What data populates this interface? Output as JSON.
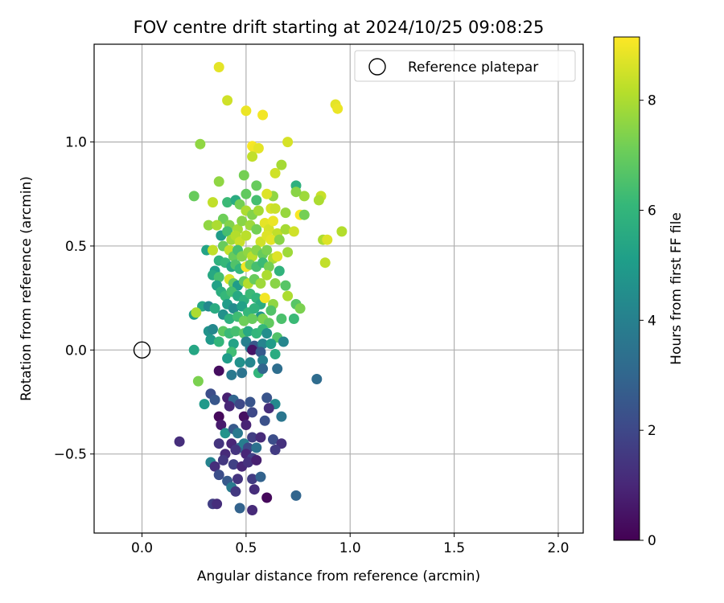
{
  "chart_data": {
    "type": "scatter",
    "title": "FOV centre drift starting at 2024/10/25 09:08:25",
    "xlabel": "Angular distance from reference (arcmin)",
    "ylabel": "Rotation from reference (arcmin)",
    "xlim": [
      -0.23,
      2.12
    ],
    "ylim": [
      -0.88,
      1.47
    ],
    "xticks": [
      0.0,
      0.5,
      1.0,
      1.5,
      2.0
    ],
    "xtick_labels": [
      "0.0",
      "0.5",
      "1.0",
      "1.5",
      "2.0"
    ],
    "yticks": [
      -0.5,
      0.0,
      0.5,
      1.0
    ],
    "ytick_labels": [
      "−0.5",
      "0.0",
      "0.5",
      "1.0"
    ],
    "grid": true,
    "legend": {
      "placement": "top-right",
      "entries": [
        "Reference platepar"
      ]
    },
    "reference_point": {
      "x": 0.0,
      "y": 0.0
    },
    "colorbar": {
      "label": "Hours from first FF file",
      "range": [
        0,
        9.15
      ],
      "ticks": [
        0,
        2,
        4,
        6,
        8
      ],
      "tick_labels": [
        "0",
        "2",
        "4",
        "6",
        "8"
      ],
      "colormap": "viridis",
      "colors": [
        "#440154",
        "#482878",
        "#3e4989",
        "#31688e",
        "#26828e",
        "#1f9e89",
        "#35b779",
        "#6ece58",
        "#b5de2b",
        "#fde725"
      ]
    },
    "series": [
      {
        "name": "FOV centre drift",
        "points": [
          [
            0.37,
            1.36,
            8.8
          ],
          [
            0.41,
            1.2,
            8.5
          ],
          [
            0.5,
            1.15,
            8.9
          ],
          [
            0.58,
            1.13,
            9.0
          ],
          [
            0.93,
            1.18,
            8.8
          ],
          [
            0.94,
            1.16,
            8.9
          ],
          [
            0.28,
            0.99,
            7.6
          ],
          [
            0.53,
            0.98,
            9.1
          ],
          [
            0.54,
            0.97,
            9.0
          ],
          [
            0.56,
            0.97,
            8.8
          ],
          [
            0.7,
            1.0,
            8.6
          ],
          [
            0.53,
            0.93,
            8.3
          ],
          [
            0.67,
            0.89,
            7.9
          ],
          [
            0.37,
            0.81,
            7.6
          ],
          [
            0.49,
            0.84,
            7.2
          ],
          [
            0.64,
            0.85,
            8.5
          ],
          [
            0.74,
            0.79,
            5.8
          ],
          [
            0.55,
            0.79,
            7.0
          ],
          [
            0.25,
            0.74,
            7.0
          ],
          [
            0.34,
            0.71,
            8.3
          ],
          [
            0.41,
            0.71,
            6.2
          ],
          [
            0.45,
            0.72,
            5.6
          ],
          [
            0.5,
            0.75,
            6.9
          ],
          [
            0.55,
            0.72,
            6.4
          ],
          [
            0.63,
            0.74,
            7.6
          ],
          [
            0.6,
            0.75,
            8.7
          ],
          [
            0.78,
            0.74,
            7.8
          ],
          [
            0.86,
            0.74,
            8.4
          ],
          [
            0.85,
            0.72,
            8.0
          ],
          [
            0.74,
            0.76,
            7.5
          ],
          [
            0.47,
            0.7,
            7.2
          ],
          [
            0.5,
            0.67,
            8.0
          ],
          [
            0.53,
            0.65,
            7.4
          ],
          [
            0.56,
            0.67,
            7.9
          ],
          [
            0.62,
            0.68,
            8.6
          ],
          [
            0.64,
            0.68,
            8.4
          ],
          [
            0.69,
            0.66,
            7.7
          ],
          [
            0.76,
            0.65,
            9.1
          ],
          [
            0.78,
            0.65,
            7.2
          ],
          [
            0.39,
            0.63,
            7.1
          ],
          [
            0.42,
            0.6,
            7.4
          ],
          [
            0.46,
            0.58,
            7.9
          ],
          [
            0.48,
            0.62,
            7.5
          ],
          [
            0.52,
            0.6,
            7.8
          ],
          [
            0.55,
            0.58,
            7.2
          ],
          [
            0.59,
            0.61,
            8.8
          ],
          [
            0.61,
            0.58,
            8.6
          ],
          [
            0.63,
            0.62,
            8.9
          ],
          [
            0.65,
            0.56,
            8.3
          ],
          [
            0.69,
            0.58,
            7.9
          ],
          [
            0.73,
            0.57,
            8.5
          ],
          [
            0.32,
            0.6,
            7.6
          ],
          [
            0.36,
            0.6,
            8.0
          ],
          [
            0.38,
            0.55,
            5.0
          ],
          [
            0.41,
            0.57,
            6.4
          ],
          [
            0.43,
            0.53,
            7.8
          ],
          [
            0.45,
            0.55,
            8.1
          ],
          [
            0.47,
            0.52,
            8.4
          ],
          [
            0.5,
            0.55,
            8.2
          ],
          [
            0.57,
            0.52,
            8.5
          ],
          [
            0.6,
            0.55,
            8.7
          ],
          [
            0.62,
            0.53,
            8.8
          ],
          [
            0.66,
            0.53,
            7.5
          ],
          [
            0.87,
            0.53,
            8.0
          ],
          [
            0.89,
            0.53,
            8.7
          ],
          [
            0.96,
            0.57,
            8.1
          ],
          [
            0.31,
            0.48,
            5.3
          ],
          [
            0.34,
            0.48,
            8.3
          ],
          [
            0.39,
            0.5,
            7.0
          ],
          [
            0.42,
            0.48,
            8.3
          ],
          [
            0.44,
            0.45,
            7.0
          ],
          [
            0.46,
            0.48,
            6.4
          ],
          [
            0.48,
            0.45,
            7.4
          ],
          [
            0.51,
            0.47,
            7.6
          ],
          [
            0.53,
            0.45,
            8.2
          ],
          [
            0.55,
            0.48,
            7.5
          ],
          [
            0.58,
            0.46,
            7.0
          ],
          [
            0.6,
            0.48,
            7.3
          ],
          [
            0.63,
            0.44,
            8.0
          ],
          [
            0.65,
            0.45,
            8.7
          ],
          [
            0.7,
            0.47,
            7.8
          ],
          [
            0.88,
            0.42,
            8.3
          ],
          [
            0.37,
            0.43,
            5.8
          ],
          [
            0.4,
            0.42,
            6.1
          ],
          [
            0.43,
            0.4,
            5.4
          ],
          [
            0.45,
            0.41,
            6.6
          ],
          [
            0.47,
            0.39,
            6.0
          ],
          [
            0.5,
            0.4,
            9.0
          ],
          [
            0.52,
            0.41,
            7.1
          ],
          [
            0.55,
            0.4,
            6.4
          ],
          [
            0.58,
            0.42,
            6.2
          ],
          [
            0.61,
            0.4,
            7.2
          ],
          [
            0.66,
            0.38,
            5.9
          ],
          [
            0.35,
            0.38,
            5.1
          ],
          [
            0.34,
            0.36,
            5.5
          ],
          [
            0.37,
            0.35,
            6.4
          ],
          [
            0.42,
            0.34,
            8.6
          ],
          [
            0.44,
            0.32,
            6.9
          ],
          [
            0.46,
            0.31,
            5.0
          ],
          [
            0.49,
            0.33,
            6.8
          ],
          [
            0.51,
            0.32,
            8.1
          ],
          [
            0.54,
            0.34,
            7.0
          ],
          [
            0.57,
            0.32,
            7.8
          ],
          [
            0.6,
            0.36,
            8.0
          ],
          [
            0.64,
            0.32,
            7.5
          ],
          [
            0.69,
            0.31,
            6.7
          ],
          [
            0.36,
            0.31,
            5.2
          ],
          [
            0.38,
            0.28,
            5.7
          ],
          [
            0.4,
            0.26,
            6.1
          ],
          [
            0.43,
            0.28,
            6.4
          ],
          [
            0.46,
            0.26,
            5.5
          ],
          [
            0.49,
            0.24,
            5.8
          ],
          [
            0.52,
            0.27,
            6.2
          ],
          [
            0.55,
            0.25,
            6.0
          ],
          [
            0.57,
            0.22,
            5.6
          ],
          [
            0.59,
            0.25,
            9.0
          ],
          [
            0.63,
            0.22,
            7.6
          ],
          [
            0.7,
            0.26,
            8.0
          ],
          [
            0.74,
            0.22,
            6.7
          ],
          [
            0.76,
            0.2,
            7.3
          ],
          [
            0.29,
            0.21,
            5.4
          ],
          [
            0.32,
            0.21,
            4.3
          ],
          [
            0.35,
            0.2,
            5.6
          ],
          [
            0.41,
            0.22,
            5.0
          ],
          [
            0.44,
            0.2,
            4.4
          ],
          [
            0.48,
            0.21,
            5.2
          ],
          [
            0.51,
            0.18,
            6.1
          ],
          [
            0.54,
            0.2,
            5.9
          ],
          [
            0.57,
            0.16,
            4.8
          ],
          [
            0.62,
            0.19,
            6.6
          ],
          [
            0.25,
            0.17,
            5.1
          ],
          [
            0.26,
            0.18,
            8.0
          ],
          [
            0.39,
            0.17,
            4.6
          ],
          [
            0.42,
            0.15,
            5.8
          ],
          [
            0.46,
            0.16,
            6.3
          ],
          [
            0.49,
            0.14,
            7.1
          ],
          [
            0.53,
            0.15,
            7.0
          ],
          [
            0.58,
            0.15,
            7.3
          ],
          [
            0.61,
            0.13,
            6.9
          ],
          [
            0.67,
            0.15,
            6.5
          ],
          [
            0.73,
            0.15,
            6.2
          ],
          [
            0.32,
            0.09,
            4.7
          ],
          [
            0.34,
            0.1,
            4.3
          ],
          [
            0.39,
            0.09,
            6.8
          ],
          [
            0.42,
            0.08,
            6.2
          ],
          [
            0.45,
            0.09,
            6.4
          ],
          [
            0.49,
            0.08,
            6.7
          ],
          [
            0.51,
            0.09,
            5.5
          ],
          [
            0.55,
            0.08,
            6.0
          ],
          [
            0.58,
            0.1,
            6.1
          ],
          [
            0.6,
            0.08,
            4.5
          ],
          [
            0.65,
            0.06,
            6.6
          ],
          [
            0.33,
            0.05,
            4.9
          ],
          [
            0.37,
            0.04,
            6.0
          ],
          [
            0.44,
            0.03,
            5.3
          ],
          [
            0.5,
            0.04,
            4.0
          ],
          [
            0.52,
            0.01,
            3.8
          ],
          [
            0.54,
            0.02,
            2.5
          ],
          [
            0.58,
            0.03,
            4.1
          ],
          [
            0.62,
            0.03,
            5.0
          ],
          [
            0.68,
            0.04,
            4.2
          ],
          [
            0.25,
            0.0,
            5.4
          ],
          [
            0.43,
            -0.01,
            6.3
          ],
          [
            0.53,
            0.0,
            0.5
          ],
          [
            0.57,
            -0.01,
            2.6
          ],
          [
            0.64,
            -0.02,
            5.6
          ],
          [
            0.41,
            -0.04,
            5.0
          ],
          [
            0.47,
            -0.06,
            4.6
          ],
          [
            0.52,
            -0.06,
            4.2
          ],
          [
            0.58,
            -0.05,
            4.0
          ],
          [
            0.37,
            -0.1,
            0.3
          ],
          [
            0.43,
            -0.12,
            3.7
          ],
          [
            0.48,
            -0.11,
            3.5
          ],
          [
            0.56,
            -0.11,
            6.0
          ],
          [
            0.58,
            -0.09,
            3.0
          ],
          [
            0.65,
            -0.09,
            3.3
          ],
          [
            0.84,
            -0.14,
            3.2
          ],
          [
            0.27,
            -0.15,
            7.3
          ],
          [
            0.33,
            -0.21,
            2.2
          ],
          [
            0.35,
            -0.24,
            2.5
          ],
          [
            0.41,
            -0.23,
            0.8
          ],
          [
            0.44,
            -0.24,
            3.0
          ],
          [
            0.47,
            -0.26,
            2.0
          ],
          [
            0.52,
            -0.25,
            2.4
          ],
          [
            0.6,
            -0.23,
            2.4
          ],
          [
            0.64,
            -0.26,
            4.3
          ],
          [
            0.61,
            -0.28,
            1.2
          ],
          [
            0.3,
            -0.26,
            4.9
          ],
          [
            0.42,
            -0.27,
            1.0
          ],
          [
            0.37,
            -0.32,
            0.2
          ],
          [
            0.49,
            -0.32,
            0.4
          ],
          [
            0.53,
            -0.3,
            2.0
          ],
          [
            0.59,
            -0.34,
            2.3
          ],
          [
            0.67,
            -0.32,
            3.6
          ],
          [
            0.38,
            -0.36,
            0.7
          ],
          [
            0.4,
            -0.4,
            4.7
          ],
          [
            0.44,
            -0.38,
            2.6
          ],
          [
            0.46,
            -0.4,
            3.7
          ],
          [
            0.5,
            -0.36,
            0.9
          ],
          [
            0.53,
            -0.42,
            1.7
          ],
          [
            0.57,
            -0.42,
            1.1
          ],
          [
            0.63,
            -0.43,
            2.2
          ],
          [
            0.67,
            -0.45,
            1.3
          ],
          [
            0.18,
            -0.44,
            1.2
          ],
          [
            0.37,
            -0.45,
            1.4
          ],
          [
            0.43,
            -0.45,
            1.0
          ],
          [
            0.47,
            -0.47,
            3.0
          ],
          [
            0.49,
            -0.45,
            3.9
          ],
          [
            0.51,
            -0.47,
            2.0
          ],
          [
            0.55,
            -0.47,
            3.4
          ],
          [
            0.64,
            -0.48,
            1.6
          ],
          [
            0.4,
            -0.5,
            1.1
          ],
          [
            0.45,
            -0.48,
            1.4
          ],
          [
            0.5,
            -0.5,
            1.0
          ],
          [
            0.53,
            -0.52,
            1.8
          ],
          [
            0.33,
            -0.54,
            4.1
          ],
          [
            0.35,
            -0.56,
            1.2
          ],
          [
            0.39,
            -0.53,
            1.5
          ],
          [
            0.44,
            -0.55,
            1.8
          ],
          [
            0.48,
            -0.56,
            1.0
          ],
          [
            0.51,
            -0.54,
            1.3
          ],
          [
            0.55,
            -0.53,
            0.8
          ],
          [
            0.37,
            -0.6,
            2.2
          ],
          [
            0.41,
            -0.63,
            2.6
          ],
          [
            0.46,
            -0.62,
            1.4
          ],
          [
            0.53,
            -0.62,
            1.6
          ],
          [
            0.57,
            -0.61,
            2.9
          ],
          [
            0.43,
            -0.66,
            3.8
          ],
          [
            0.45,
            -0.68,
            1.5
          ],
          [
            0.54,
            -0.67,
            1.2
          ],
          [
            0.6,
            -0.71,
            0.2
          ],
          [
            0.74,
            -0.7,
            3.0
          ],
          [
            0.34,
            -0.74,
            1.7
          ],
          [
            0.36,
            -0.74,
            1.2
          ],
          [
            0.47,
            -0.76,
            2.9
          ],
          [
            0.53,
            -0.77,
            1.1
          ]
        ]
      }
    ]
  }
}
